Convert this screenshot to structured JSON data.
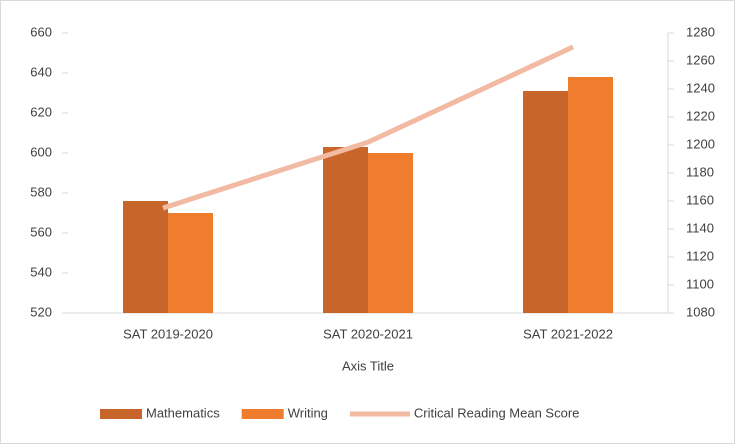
{
  "chart_data": {
    "type": "bar",
    "categories": [
      "SAT 2019-2020",
      "SAT 2020-2021",
      "SAT 2021-2022"
    ],
    "x_label": "Axis Title",
    "series": [
      {
        "name": "Mathematics",
        "color": "#c8652b",
        "values": [
          576,
          603,
          631
        ]
      },
      {
        "name": "Writing",
        "color": "#f07d2e",
        "values": [
          570,
          600,
          638
        ]
      },
      {
        "name": "Critical Reading Mean Score",
        "color": "#f2b9a3",
        "type": "line",
        "axis": "y2",
        "values": [
          1155,
          1202,
          1270
        ]
      }
    ],
    "ylim": [
      520,
      660
    ],
    "yticks": [
      520,
      540,
      560,
      580,
      600,
      620,
      640,
      660
    ],
    "y2lim": [
      1080,
      1280
    ],
    "y2ticks": [
      1080,
      1100,
      1120,
      1140,
      1160,
      1180,
      1200,
      1220,
      1240,
      1260,
      1280
    ],
    "grid": false,
    "legend": "bottom"
  }
}
